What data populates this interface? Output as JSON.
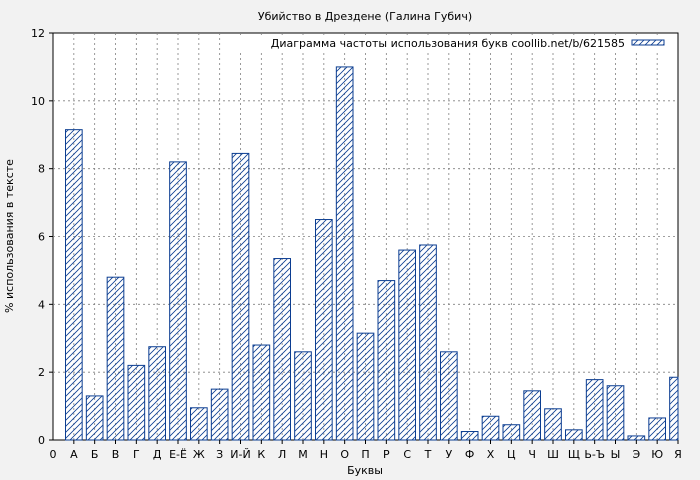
{
  "chart_data": {
    "type": "bar",
    "title": "Убийство в Дрездене (Галина Губич)",
    "xlabel": "Буквы",
    "ylabel": "% использования в тексте",
    "legend": "Диаграмма частоты использования букв coollib.net/b/621585",
    "legend_position": "top-right",
    "grid": true,
    "ylim": [
      0,
      12
    ],
    "yticks": [
      0,
      2,
      4,
      6,
      8,
      10,
      12
    ],
    "x_origin_label": "0",
    "categories": [
      "А",
      "Б",
      "В",
      "Г",
      "Д",
      "Е-Ё",
      "Ж",
      "З",
      "И-Й",
      "К",
      "Л",
      "М",
      "Н",
      "О",
      "П",
      "Р",
      "С",
      "Т",
      "У",
      "Ф",
      "Х",
      "Ц",
      "Ч",
      "Ш",
      "Щ",
      "Ь-Ъ",
      "Ы",
      "Э",
      "Ю",
      "Я"
    ],
    "values": [
      9.15,
      1.3,
      4.8,
      2.2,
      2.75,
      8.2,
      0.95,
      1.5,
      8.45,
      2.8,
      5.35,
      2.6,
      6.5,
      11.0,
      3.15,
      4.7,
      5.6,
      5.75,
      2.6,
      0.25,
      0.7,
      0.45,
      1.45,
      0.92,
      0.3,
      1.78,
      1.6,
      0.12,
      0.65,
      1.85
    ],
    "colors": {
      "bar_stroke": "#0b3d91",
      "hatch": "#0b3d91",
      "grid": "#808080",
      "plot_bg": "#ffffff",
      "page_bg": "#f2f2f2"
    }
  }
}
